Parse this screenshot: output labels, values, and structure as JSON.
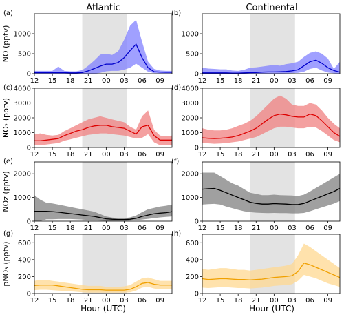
{
  "columns": [
    "Atlantic",
    "Continental"
  ],
  "xlabel": "Hour (UTC)",
  "x_ticks": [
    "12",
    "15",
    "18",
    "21",
    "00",
    "03",
    "06",
    "09"
  ],
  "x_tick_hours": [
    12,
    15,
    18,
    21,
    24,
    27,
    30,
    33
  ],
  "x_range": [
    12,
    35
  ],
  "shade_range": [
    20,
    27.5
  ],
  "chart_data": [
    {
      "type": "area",
      "panel": "(a)",
      "column": "Atlantic",
      "ylabel": "NO (pptv)",
      "ylim": [
        0,
        1500
      ],
      "yticks": [
        0,
        500,
        1000
      ],
      "color": "#0000cc",
      "fill": "#8080ff",
      "x": [
        12,
        13,
        14,
        15,
        16,
        17,
        18,
        19,
        20,
        21,
        22,
        23,
        24,
        25,
        26,
        27,
        28,
        29,
        30,
        31,
        32,
        33,
        34,
        35
      ],
      "mean": [
        25,
        25,
        25,
        25,
        30,
        25,
        20,
        20,
        30,
        70,
        130,
        190,
        240,
        240,
        280,
        400,
        580,
        740,
        400,
        150,
        50,
        40,
        35,
        35
      ],
      "low": [
        0,
        0,
        0,
        0,
        0,
        0,
        0,
        0,
        0,
        0,
        0,
        20,
        60,
        70,
        70,
        100,
        150,
        250,
        150,
        50,
        15,
        10,
        10,
        10
      ],
      "high": [
        70,
        70,
        70,
        70,
        180,
        70,
        60,
        60,
        90,
        200,
        330,
        480,
        500,
        470,
        560,
        850,
        1200,
        1350,
        800,
        300,
        120,
        80,
        70,
        70
      ]
    },
    {
      "type": "area",
      "panel": "(b)",
      "column": "Continental",
      "ylabel": "",
      "ylim": [
        0,
        1500
      ],
      "yticks": [
        0,
        500,
        1000
      ],
      "color": "#0000cc",
      "fill": "#8080ff",
      "x": [
        12,
        13,
        14,
        15,
        16,
        17,
        18,
        19,
        20,
        21,
        22,
        23,
        24,
        25,
        26,
        27,
        28,
        29,
        30,
        31,
        32,
        33,
        34,
        35
      ],
      "mean": [
        20,
        20,
        20,
        20,
        20,
        15,
        15,
        20,
        25,
        30,
        40,
        45,
        45,
        50,
        55,
        70,
        100,
        200,
        300,
        340,
        260,
        150,
        80,
        40
      ],
      "low": [
        0,
        0,
        0,
        0,
        0,
        0,
        0,
        0,
        0,
        0,
        0,
        5,
        5,
        5,
        10,
        15,
        20,
        50,
        120,
        150,
        80,
        30,
        10,
        5
      ],
      "high": [
        150,
        130,
        120,
        110,
        110,
        80,
        70,
        100,
        150,
        160,
        180,
        200,
        220,
        200,
        240,
        260,
        300,
        420,
        520,
        560,
        500,
        380,
        120,
        300
      ]
    },
    {
      "type": "area",
      "panel": "(c)",
      "column": "Atlantic",
      "ylabel": "NO₂ (pptv)",
      "ylim": [
        0,
        4000
      ],
      "yticks": [
        0,
        1000,
        2000,
        3000,
        4000
      ],
      "color": "#dd0000",
      "fill": "#f08080",
      "x": [
        12,
        13,
        14,
        15,
        16,
        17,
        18,
        19,
        20,
        21,
        22,
        23,
        24,
        25,
        26,
        27,
        28,
        29,
        30,
        31,
        32,
        33,
        34,
        35
      ],
      "mean": [
        450,
        450,
        500,
        550,
        600,
        800,
        950,
        1100,
        1200,
        1350,
        1450,
        1500,
        1500,
        1400,
        1350,
        1300,
        1100,
        900,
        1400,
        1500,
        800,
        500,
        500,
        500
      ],
      "low": [
        150,
        150,
        200,
        250,
        300,
        450,
        550,
        650,
        750,
        850,
        900,
        950,
        950,
        900,
        850,
        800,
        700,
        600,
        650,
        900,
        350,
        150,
        150,
        150
      ],
      "high": [
        900,
        950,
        850,
        800,
        850,
        1100,
        1300,
        1500,
        1700,
        1900,
        2000,
        2100,
        2000,
        1900,
        1800,
        1700,
        1400,
        1200,
        2100,
        2500,
        1200,
        800,
        750,
        800
      ]
    },
    {
      "type": "area",
      "panel": "(d)",
      "column": "Continental",
      "ylabel": "",
      "ylim": [
        0,
        4000
      ],
      "yticks": [
        0,
        1000,
        2000,
        3000,
        4000
      ],
      "color": "#dd0000",
      "fill": "#f08080",
      "x": [
        12,
        13,
        14,
        15,
        16,
        17,
        18,
        19,
        20,
        21,
        22,
        23,
        24,
        25,
        26,
        27,
        28,
        29,
        30,
        31,
        32,
        33,
        34,
        35
      ],
      "mean": [
        650,
        620,
        600,
        620,
        650,
        700,
        800,
        950,
        1100,
        1300,
        1600,
        1900,
        2150,
        2250,
        2200,
        2100,
        2050,
        2050,
        2250,
        2150,
        1800,
        1400,
        1000,
        750
      ],
      "low": [
        300,
        280,
        250,
        270,
        300,
        350,
        400,
        500,
        600,
        700,
        900,
        1100,
        1300,
        1400,
        1400,
        1350,
        1300,
        1300,
        1400,
        1350,
        1100,
        800,
        500,
        350
      ],
      "high": [
        1300,
        1200,
        1150,
        1150,
        1200,
        1300,
        1450,
        1600,
        1800,
        2100,
        2500,
        2900,
        3300,
        3500,
        3300,
        2900,
        2800,
        2800,
        3000,
        2900,
        2500,
        2000,
        1600,
        1300
      ]
    },
    {
      "type": "area",
      "panel": "(e)",
      "column": "Atlantic",
      "ylabel": "NOz (pptv)",
      "ylim": [
        0,
        2500
      ],
      "yticks": [
        0,
        1000,
        2000
      ],
      "color": "#000000",
      "fill": "#808080",
      "x": [
        12,
        13,
        14,
        15,
        16,
        17,
        18,
        19,
        20,
        21,
        22,
        23,
        24,
        25,
        26,
        27,
        28,
        29,
        30,
        31,
        32,
        33,
        34,
        35
      ],
      "mean": [
        420,
        420,
        420,
        400,
        380,
        350,
        320,
        290,
        260,
        230,
        200,
        150,
        100,
        80,
        70,
        70,
        80,
        120,
        200,
        260,
        310,
        340,
        360,
        400
      ],
      "low": [
        0,
        0,
        80,
        80,
        90,
        90,
        90,
        80,
        70,
        50,
        40,
        20,
        10,
        10,
        10,
        10,
        20,
        40,
        70,
        100,
        130,
        160,
        180,
        200
      ],
      "high": [
        1100,
        900,
        780,
        750,
        700,
        650,
        600,
        550,
        500,
        450,
        400,
        300,
        200,
        150,
        130,
        130,
        160,
        240,
        380,
        500,
        560,
        620,
        650,
        700
      ]
    },
    {
      "type": "area",
      "panel": "(f)",
      "column": "Continental",
      "ylabel": "",
      "ylim": [
        0,
        2500
      ],
      "yticks": [
        0,
        1000,
        2000
      ],
      "color": "#000000",
      "fill": "#808080",
      "x": [
        12,
        13,
        14,
        15,
        16,
        17,
        18,
        19,
        20,
        21,
        22,
        23,
        24,
        25,
        26,
        27,
        28,
        29,
        30,
        31,
        32,
        33,
        34,
        35
      ],
      "mean": [
        1350,
        1370,
        1380,
        1300,
        1200,
        1100,
        1000,
        900,
        800,
        750,
        720,
        720,
        740,
        730,
        720,
        700,
        700,
        750,
        850,
        950,
        1050,
        1150,
        1250,
        1380
      ],
      "low": [
        700,
        720,
        730,
        700,
        620,
        550,
        480,
        420,
        380,
        360,
        350,
        340,
        350,
        340,
        340,
        330,
        330,
        350,
        420,
        500,
        580,
        660,
        740,
        850
      ],
      "high": [
        2050,
        2050,
        2050,
        1900,
        1750,
        1600,
        1500,
        1350,
        1200,
        1150,
        1100,
        1100,
        1120,
        1100,
        1090,
        1080,
        1060,
        1120,
        1250,
        1400,
        1550,
        1700,
        1850,
        2000
      ]
    },
    {
      "type": "area",
      "panel": "(g)",
      "column": "Atlantic",
      "ylabel": "pNO₃ (pptv)",
      "ylim": [
        0,
        700
      ],
      "yticks": [
        0,
        200,
        400,
        600
      ],
      "color": "#f0a000",
      "fill": "#ffd890",
      "x": [
        12,
        13,
        14,
        15,
        16,
        17,
        18,
        19,
        20,
        21,
        22,
        23,
        24,
        25,
        26,
        27,
        28,
        29,
        30,
        31,
        32,
        33,
        34,
        35
      ],
      "mean": [
        95,
        100,
        100,
        100,
        90,
        80,
        70,
        60,
        50,
        45,
        45,
        45,
        40,
        40,
        40,
        40,
        50,
        80,
        120,
        130,
        110,
        100,
        100,
        100
      ],
      "low": [
        40,
        45,
        45,
        40,
        35,
        30,
        25,
        20,
        15,
        10,
        10,
        10,
        10,
        10,
        10,
        10,
        15,
        35,
        70,
        80,
        60,
        50,
        50,
        50
      ],
      "high": [
        150,
        160,
        160,
        150,
        140,
        130,
        120,
        110,
        100,
        90,
        90,
        90,
        80,
        80,
        80,
        85,
        100,
        140,
        180,
        190,
        170,
        150,
        150,
        150
      ]
    },
    {
      "type": "area",
      "panel": "(h)",
      "column": "Continental",
      "ylabel": "",
      "ylim": [
        0,
        700
      ],
      "yticks": [
        0,
        200,
        400,
        600
      ],
      "color": "#f0a000",
      "fill": "#ffd890",
      "x": [
        12,
        13,
        14,
        15,
        16,
        17,
        18,
        19,
        20,
        21,
        22,
        23,
        24,
        25,
        26,
        27,
        28,
        29,
        30,
        31,
        32,
        33,
        34,
        35
      ],
      "mean": [
        175,
        165,
        170,
        175,
        175,
        170,
        165,
        165,
        160,
        165,
        170,
        180,
        190,
        195,
        200,
        210,
        260,
        360,
        340,
        310,
        280,
        250,
        220,
        190
      ],
      "low": [
        70,
        65,
        70,
        75,
        75,
        70,
        65,
        65,
        60,
        65,
        70,
        80,
        90,
        95,
        100,
        110,
        150,
        220,
        200,
        180,
        150,
        120,
        100,
        80
      ],
      "high": [
        290,
        280,
        290,
        300,
        300,
        290,
        280,
        280,
        270,
        280,
        290,
        300,
        310,
        320,
        330,
        350,
        450,
        590,
        550,
        500,
        450,
        400,
        350,
        300
      ]
    }
  ]
}
